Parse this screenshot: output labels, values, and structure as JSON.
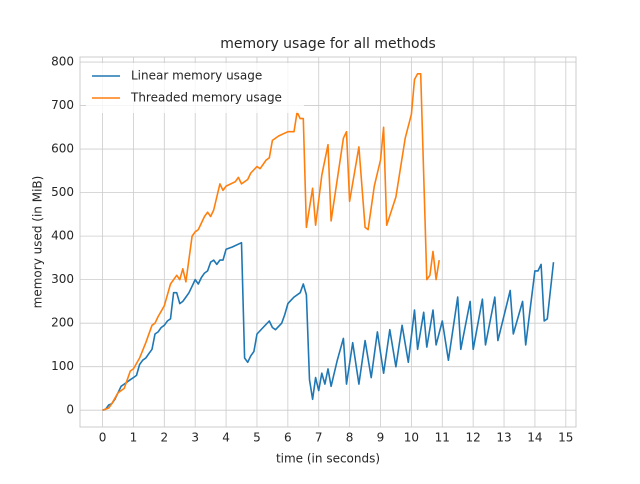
{
  "chart_data": {
    "type": "line",
    "title": "memory usage for all methods",
    "xlabel": "time (in seconds)",
    "ylabel": "memory used (in MiB)",
    "xlim": [
      -0.73,
      15.33
    ],
    "ylim": [
      -38.6,
      811.6
    ],
    "xticks": [
      0,
      1,
      2,
      3,
      4,
      5,
      6,
      7,
      8,
      9,
      10,
      11,
      12,
      13,
      14,
      15
    ],
    "yticks": [
      0,
      100,
      200,
      300,
      400,
      500,
      600,
      700,
      800
    ],
    "grid": true,
    "legend": "upper left",
    "series": [
      {
        "name": "Linear memory usage",
        "color": "#1f77b4",
        "x": [
          0,
          0.1,
          0.2,
          0.3,
          0.4,
          0.5,
          0.6,
          0.7,
          0.8,
          0.9,
          1.0,
          1.1,
          1.2,
          1.3,
          1.4,
          1.5,
          1.6,
          1.7,
          1.8,
          1.9,
          2.0,
          2.1,
          2.2,
          2.3,
          2.4,
          2.5,
          2.6,
          2.7,
          2.8,
          2.9,
          3.0,
          3.1,
          3.2,
          3.3,
          3.4,
          3.5,
          3.6,
          3.7,
          3.8,
          3.9,
          4.0,
          4.2,
          4.5,
          4.6,
          4.7,
          4.8,
          4.9,
          5.0,
          5.2,
          5.4,
          5.5,
          5.6,
          5.8,
          5.9,
          6.0,
          6.2,
          6.4,
          6.5,
          6.6,
          6.7,
          6.8,
          6.9,
          7.0,
          7.1,
          7.2,
          7.3,
          7.4,
          7.6,
          7.8,
          7.9,
          8.1,
          8.3,
          8.5,
          8.7,
          8.9,
          9.1,
          9.3,
          9.5,
          9.7,
          9.9,
          10.1,
          10.2,
          10.4,
          10.5,
          10.7,
          10.8,
          11.0,
          11.2,
          11.5,
          11.6,
          11.9,
          12.0,
          12.3,
          12.4,
          12.7,
          12.8,
          13.2,
          13.3,
          13.6,
          13.7,
          14.0,
          14.1,
          14.2,
          14.3,
          14.4,
          14.6
        ],
        "values": [
          0,
          2,
          12,
          15,
          25,
          40,
          55,
          60,
          65,
          70,
          75,
          80,
          105,
          115,
          120,
          130,
          140,
          175,
          180,
          190,
          195,
          205,
          210,
          270,
          270,
          245,
          250,
          260,
          270,
          285,
          300,
          290,
          305,
          315,
          320,
          340,
          345,
          335,
          345,
          345,
          370,
          375,
          385,
          120,
          110,
          125,
          135,
          175,
          190,
          205,
          190,
          185,
          200,
          220,
          245,
          260,
          270,
          290,
          265,
          70,
          25,
          75,
          45,
          85,
          60,
          95,
          55,
          115,
          165,
          60,
          155,
          60,
          160,
          75,
          180,
          85,
          185,
          100,
          195,
          110,
          230,
          140,
          225,
          145,
          230,
          150,
          205,
          115,
          260,
          140,
          250,
          140,
          255,
          150,
          260,
          160,
          275,
          175,
          250,
          150,
          320,
          320,
          335,
          205,
          210,
          340
        ]
      },
      {
        "name": "Threaded memory usage",
        "color": "#ff7f0e",
        "x": [
          0,
          0.2,
          0.3,
          0.5,
          0.7,
          0.8,
          0.9,
          1.0,
          1.2,
          1.4,
          1.6,
          1.7,
          1.8,
          2.0,
          2.2,
          2.4,
          2.5,
          2.6,
          2.7,
          2.9,
          3.0,
          3.1,
          3.3,
          3.4,
          3.5,
          3.6,
          3.8,
          3.9,
          4.0,
          4.3,
          4.4,
          4.5,
          4.7,
          4.8,
          5.0,
          5.1,
          5.3,
          5.4,
          5.5,
          5.7,
          6.0,
          6.2,
          6.3,
          6.4,
          6.5,
          6.6,
          6.8,
          6.9,
          7.1,
          7.3,
          7.4,
          7.8,
          7.9,
          8.0,
          8.3,
          8.5,
          8.6,
          8.8,
          9.0,
          9.1,
          9.2,
          9.5,
          9.8,
          10.0,
          10.1,
          10.2,
          10.3,
          10.5,
          10.6,
          10.7,
          10.8,
          10.9
        ],
        "values": [
          0,
          5,
          15,
          40,
          50,
          70,
          90,
          95,
          120,
          155,
          195,
          200,
          215,
          240,
          290,
          310,
          300,
          325,
          295,
          400,
          410,
          415,
          445,
          455,
          445,
          460,
          520,
          505,
          515,
          525,
          535,
          520,
          530,
          545,
          560,
          555,
          575,
          580,
          620,
          630,
          640,
          640,
          685,
          670,
          670,
          420,
          510,
          425,
          540,
          610,
          435,
          625,
          640,
          480,
          605,
          420,
          415,
          515,
          575,
          650,
          425,
          490,
          625,
          680,
          760,
          773,
          773,
          300,
          310,
          365,
          300,
          345
        ]
      }
    ]
  }
}
